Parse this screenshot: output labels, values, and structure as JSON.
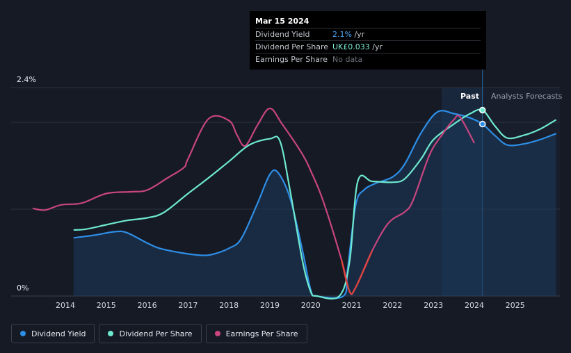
{
  "tooltip": {
    "date": "Mar 15 2024",
    "rows": [
      {
        "label": "Dividend Yield",
        "value": "2.1%",
        "unit": " /yr"
      },
      {
        "label": "Dividend Per Share",
        "value": "UK£0.033",
        "unit": " /yr"
      },
      {
        "label": "Earnings Per Share",
        "value": "No data",
        "unit": ""
      }
    ]
  },
  "labels": {
    "past": "Past",
    "forecast": "Analysts Forecasts"
  },
  "legend": [
    {
      "label": "Dividend Yield",
      "color": "#2e8ee6"
    },
    {
      "label": "Dividend Per Share",
      "color": "#6ee8cf"
    },
    {
      "label": "Earnings Per Share",
      "color": "#c8457f"
    }
  ],
  "chart_data": {
    "type": "line",
    "title": "",
    "xlabel": "",
    "ylabel": "",
    "ylim": [
      0,
      2.4
    ],
    "y_tick_labels": [
      "2.4%",
      "0%"
    ],
    "x_tick_labels": [
      "2014",
      "2015",
      "2016",
      "2017",
      "2018",
      "2019",
      "2020",
      "2021",
      "2022",
      "2023",
      "2024",
      "2025"
    ],
    "forecast_start": 2024.2,
    "series": [
      {
        "name": "Dividend Yield",
        "color": "#2e8ee6",
        "points": [
          [
            2014.2,
            0.67
          ],
          [
            2014.7,
            0.7
          ],
          [
            2015.2,
            0.74
          ],
          [
            2015.5,
            0.73
          ],
          [
            2016.0,
            0.61
          ],
          [
            2016.3,
            0.55
          ],
          [
            2016.8,
            0.5
          ],
          [
            2017.3,
            0.47
          ],
          [
            2017.6,
            0.48
          ],
          [
            2018.0,
            0.55
          ],
          [
            2018.3,
            0.66
          ],
          [
            2018.7,
            1.07
          ],
          [
            2019.0,
            1.4
          ],
          [
            2019.2,
            1.42
          ],
          [
            2019.5,
            1.12
          ],
          [
            2019.8,
            0.52
          ],
          [
            2020.0,
            0.07
          ],
          [
            2020.15,
            0.0
          ],
          [
            2020.8,
            0.0
          ],
          [
            2020.9,
            0.3
          ],
          [
            2021.1,
            1.05
          ],
          [
            2021.3,
            1.22
          ],
          [
            2021.6,
            1.3
          ],
          [
            2022.0,
            1.37
          ],
          [
            2022.3,
            1.52
          ],
          [
            2022.7,
            1.88
          ],
          [
            2023.1,
            2.12
          ],
          [
            2023.5,
            2.1
          ],
          [
            2023.9,
            2.05
          ],
          [
            2024.2,
            1.98
          ],
          [
            2024.5,
            1.85
          ],
          [
            2024.8,
            1.74
          ],
          [
            2025.2,
            1.75
          ],
          [
            2025.6,
            1.8
          ],
          [
            2026.0,
            1.87
          ]
        ]
      },
      {
        "name": "Dividend Per Share",
        "color": "#6ee8cf",
        "points": [
          [
            2014.2,
            0.76
          ],
          [
            2014.5,
            0.77
          ],
          [
            2015.0,
            0.82
          ],
          [
            2015.5,
            0.87
          ],
          [
            2016.0,
            0.9
          ],
          [
            2016.4,
            0.96
          ],
          [
            2017.0,
            1.18
          ],
          [
            2017.5,
            1.36
          ],
          [
            2018.0,
            1.55
          ],
          [
            2018.5,
            1.74
          ],
          [
            2019.0,
            1.81
          ],
          [
            2019.25,
            1.78
          ],
          [
            2019.5,
            1.2
          ],
          [
            2019.8,
            0.4
          ],
          [
            2020.0,
            0.05
          ],
          [
            2020.15,
            0.0
          ],
          [
            2020.7,
            0.0
          ],
          [
            2020.95,
            0.4
          ],
          [
            2021.15,
            1.32
          ],
          [
            2021.5,
            1.32
          ],
          [
            2022.0,
            1.31
          ],
          [
            2022.3,
            1.35
          ],
          [
            2022.7,
            1.58
          ],
          [
            2023.0,
            1.8
          ],
          [
            2023.5,
            1.98
          ],
          [
            2023.9,
            2.1
          ],
          [
            2024.2,
            2.14
          ],
          [
            2024.5,
            1.96
          ],
          [
            2024.8,
            1.82
          ],
          [
            2025.2,
            1.85
          ],
          [
            2025.6,
            1.92
          ],
          [
            2026.0,
            2.03
          ]
        ]
      },
      {
        "name": "Earnings Per Share",
        "color": "#c8457f",
        "points": [
          [
            2013.2,
            1.01
          ],
          [
            2013.5,
            0.99
          ],
          [
            2013.9,
            1.05
          ],
          [
            2014.4,
            1.07
          ],
          [
            2015.0,
            1.18
          ],
          [
            2015.6,
            1.2
          ],
          [
            2016.0,
            1.22
          ],
          [
            2016.5,
            1.36
          ],
          [
            2016.9,
            1.48
          ],
          [
            2017.0,
            1.58
          ],
          [
            2017.5,
            2.04
          ],
          [
            2018.0,
            2.02
          ],
          [
            2018.2,
            1.85
          ],
          [
            2018.4,
            1.73
          ],
          [
            2018.7,
            1.97
          ],
          [
            2019.0,
            2.16
          ],
          [
            2019.3,
            1.98
          ],
          [
            2019.8,
            1.63
          ],
          [
            2020.0,
            1.44
          ],
          [
            2020.3,
            1.1
          ],
          [
            2020.75,
            0.42
          ],
          [
            2020.95,
            0.05
          ],
          [
            2021.1,
            0.1
          ],
          [
            2021.5,
            0.52
          ],
          [
            2021.9,
            0.84
          ],
          [
            2022.3,
            0.97
          ],
          [
            2022.5,
            1.1
          ],
          [
            2022.9,
            1.62
          ],
          [
            2023.2,
            1.85
          ],
          [
            2023.5,
            2.03
          ],
          [
            2023.65,
            2.06
          ],
          [
            2024.0,
            1.76
          ]
        ]
      }
    ]
  }
}
